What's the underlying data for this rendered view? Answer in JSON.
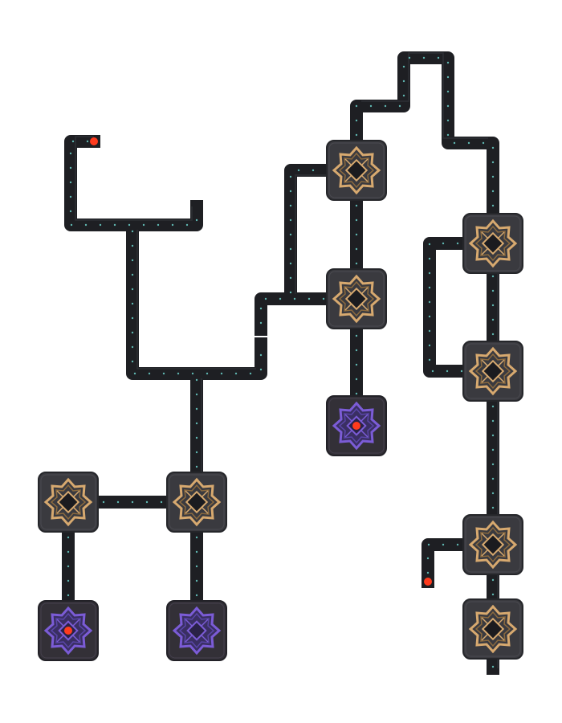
{
  "colors": {
    "background": "#ffffff",
    "pipe": "#1e1f23",
    "pipe_edge": "#2c2e33",
    "pipe_dot": "#5fb6b0",
    "node_bg": "#3a3a3f",
    "node_bg_edge": "#25262a",
    "gold_pattern": "#d7a96f",
    "gold_pattern_dark": "#8b6a3f",
    "purple_pattern": "#7b5cd6",
    "purple_pattern_dark": "#3e2f7a",
    "center_dark": "#1b1b1f",
    "red_endpoint": "#ff3b1e"
  },
  "icons": {
    "gold_node": "octagram-gold-node-icon",
    "purple_node": "octagram-purple-node-icon",
    "endpoint": "red-endpoint-dot-icon"
  },
  "nodes": {
    "gold": [
      "gold-node-top-center",
      "gold-node-mid-center",
      "gold-node-right-upper",
      "gold-node-right-middle",
      "gold-node-right-lower",
      "gold-node-right-bottom",
      "gold-node-left",
      "gold-node-left-center"
    ],
    "purple": [
      "purple-node-center",
      "purple-node-bottom-left",
      "purple-node-bottom-left-center"
    ],
    "purple_active": [
      true,
      true,
      false
    ]
  }
}
